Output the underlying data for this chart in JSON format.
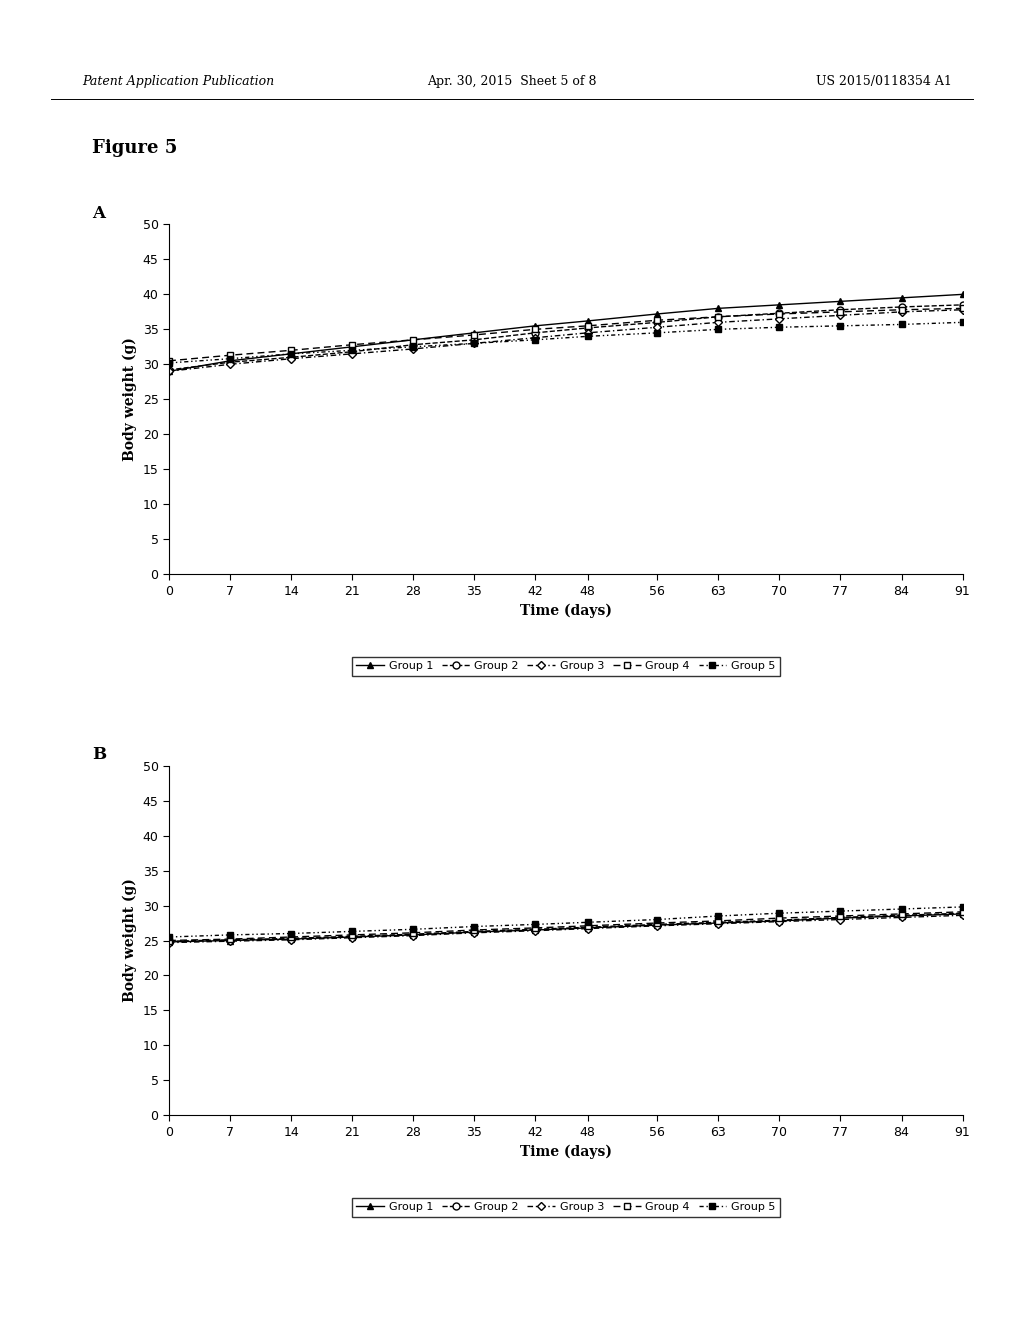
{
  "time_days": [
    0,
    7,
    14,
    21,
    28,
    35,
    42,
    48,
    56,
    63,
    70,
    77,
    84,
    91
  ],
  "panel_A": {
    "group1": [
      29.0,
      30.5,
      31.5,
      32.5,
      33.5,
      34.5,
      35.5,
      36.2,
      37.2,
      38.0,
      38.5,
      39.0,
      39.5,
      40.0
    ],
    "group2": [
      29.2,
      30.3,
      31.0,
      31.8,
      32.8,
      33.5,
      34.5,
      35.2,
      36.0,
      36.8,
      37.3,
      37.8,
      38.2,
      38.5
    ],
    "group3": [
      29.0,
      30.0,
      30.8,
      31.5,
      32.2,
      33.0,
      33.8,
      34.5,
      35.3,
      36.0,
      36.5,
      37.0,
      37.5,
      37.8
    ],
    "group4": [
      30.5,
      31.3,
      32.0,
      32.8,
      33.5,
      34.2,
      35.0,
      35.5,
      36.3,
      36.8,
      37.2,
      37.5,
      37.8,
      38.0
    ],
    "group5": [
      30.2,
      30.8,
      31.5,
      32.0,
      32.5,
      33.0,
      33.5,
      34.0,
      34.5,
      35.0,
      35.3,
      35.5,
      35.7,
      36.0
    ]
  },
  "panel_B": {
    "group1": [
      24.8,
      25.0,
      25.2,
      25.5,
      25.8,
      26.2,
      26.5,
      26.8,
      27.2,
      27.5,
      27.8,
      28.2,
      28.5,
      28.8
    ],
    "group2": [
      24.9,
      25.1,
      25.3,
      25.6,
      25.9,
      26.3,
      26.6,
      26.9,
      27.3,
      27.6,
      27.9,
      28.3,
      28.6,
      28.9
    ],
    "group3": [
      24.7,
      24.9,
      25.1,
      25.4,
      25.7,
      26.1,
      26.4,
      26.7,
      27.1,
      27.4,
      27.7,
      28.0,
      28.3,
      28.6
    ],
    "group4": [
      25.0,
      25.2,
      25.5,
      25.8,
      26.1,
      26.5,
      26.8,
      27.1,
      27.5,
      27.8,
      28.2,
      28.5,
      28.8,
      29.1
    ],
    "group5": [
      25.5,
      25.8,
      26.0,
      26.3,
      26.6,
      27.0,
      27.3,
      27.6,
      28.0,
      28.5,
      28.9,
      29.2,
      29.5,
      29.8
    ]
  },
  "xlabel": "Time (days)",
  "ylabel": "Body weight (g)",
  "xticks": [
    0,
    7,
    14,
    21,
    28,
    35,
    42,
    48,
    56,
    63,
    70,
    77,
    84,
    91
  ],
  "yticks": [
    0,
    5,
    10,
    15,
    20,
    25,
    30,
    35,
    40,
    45,
    50
  ],
  "ylim": [
    0,
    50
  ],
  "xlim": [
    0,
    91
  ],
  "figure_title": "Figure 5",
  "header_left": "Patent Application Publication",
  "header_center": "Apr. 30, 2015  Sheet 5 of 8",
  "header_right": "US 2015/0118354 A1",
  "groups": [
    "Group 1",
    "Group 2",
    "Group 3",
    "Group 4",
    "Group 5"
  ],
  "line_color": "#000000",
  "background_color": "#ffffff",
  "panel_A_label": "A",
  "panel_B_label": "B",
  "group_styles": [
    {
      "linestyle": "solid",
      "marker": "^",
      "mfc": "black",
      "mec": "black",
      "ms": 5,
      "lw": 1.0
    },
    {
      "linestyle": "dashed",
      "marker": "o",
      "mfc": "white",
      "mec": "black",
      "ms": 5,
      "lw": 1.0
    },
    {
      "linestyle": "dashdot_dotted",
      "marker": "D",
      "mfc": "white",
      "mec": "black",
      "ms": 4,
      "lw": 1.0
    },
    {
      "linestyle": "dashed2",
      "marker": "s",
      "mfc": "white",
      "mec": "black",
      "ms": 5,
      "lw": 1.0
    },
    {
      "linestyle": "dash_dot2",
      "marker": "s",
      "mfc": "black",
      "mec": "black",
      "ms": 5,
      "lw": 1.0
    }
  ]
}
